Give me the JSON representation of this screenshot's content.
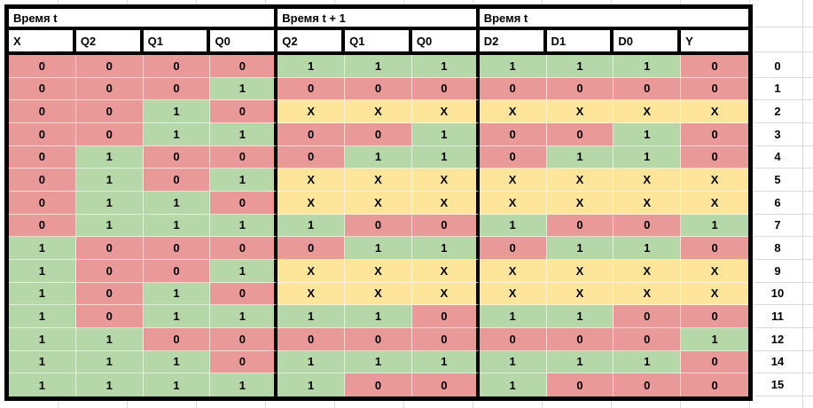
{
  "colors": {
    "fill_zero": "#ea9999",
    "fill_one": "#b6d7a8",
    "fill_x": "#ffe599",
    "grid_line": "#dadada",
    "table_border": "#000000",
    "cell_divider": "rgba(255,255,255,0.6)",
    "background": "#ffffff"
  },
  "sections": [
    {
      "title": "Время t",
      "columns": [
        "X",
        "Q2",
        "Q1",
        "Q0"
      ]
    },
    {
      "title": "Время t + 1",
      "columns": [
        "Q2",
        "Q1",
        "Q0"
      ]
    },
    {
      "title": "Время t",
      "columns": [
        "D2",
        "D1",
        "D0",
        "Y"
      ]
    }
  ],
  "rows": [
    {
      "cells": [
        "0",
        "0",
        "0",
        "0",
        "1",
        "1",
        "1",
        "1",
        "1",
        "1",
        "0"
      ],
      "label": "0"
    },
    {
      "cells": [
        "0",
        "0",
        "0",
        "1",
        "0",
        "0",
        "0",
        "0",
        "0",
        "0",
        "0"
      ],
      "label": "1"
    },
    {
      "cells": [
        "0",
        "0",
        "1",
        "0",
        "X",
        "X",
        "X",
        "X",
        "X",
        "X",
        "X"
      ],
      "label": "2"
    },
    {
      "cells": [
        "0",
        "0",
        "1",
        "1",
        "0",
        "0",
        "1",
        "0",
        "0",
        "1",
        "0"
      ],
      "label": "3"
    },
    {
      "cells": [
        "0",
        "1",
        "0",
        "0",
        "0",
        "1",
        "1",
        "0",
        "1",
        "1",
        "0"
      ],
      "label": "4"
    },
    {
      "cells": [
        "0",
        "1",
        "0",
        "1",
        "X",
        "X",
        "X",
        "X",
        "X",
        "X",
        "X"
      ],
      "label": "5"
    },
    {
      "cells": [
        "0",
        "1",
        "1",
        "0",
        "X",
        "X",
        "X",
        "X",
        "X",
        "X",
        "X"
      ],
      "label": "6"
    },
    {
      "cells": [
        "0",
        "1",
        "1",
        "1",
        "1",
        "0",
        "0",
        "1",
        "0",
        "0",
        "1"
      ],
      "label": "7"
    },
    {
      "cells": [
        "1",
        "0",
        "0",
        "0",
        "0",
        "1",
        "1",
        "0",
        "1",
        "1",
        "0"
      ],
      "label": "8"
    },
    {
      "cells": [
        "1",
        "0",
        "0",
        "1",
        "X",
        "X",
        "X",
        "X",
        "X",
        "X",
        "X"
      ],
      "label": "9"
    },
    {
      "cells": [
        "1",
        "0",
        "1",
        "0",
        "X",
        "X",
        "X",
        "X",
        "X",
        "X",
        "X"
      ],
      "label": "10"
    },
    {
      "cells": [
        "1",
        "0",
        "1",
        "1",
        "1",
        "1",
        "0",
        "1",
        "1",
        "0",
        "0"
      ],
      "label": "11"
    },
    {
      "cells": [
        "1",
        "1",
        "0",
        "0",
        "0",
        "0",
        "0",
        "0",
        "0",
        "0",
        "1"
      ],
      "label": "12"
    },
    {
      "cells": [
        "1",
        "1",
        "1",
        "0",
        "1",
        "1",
        "1",
        "1",
        "1",
        "1",
        "0"
      ],
      "label": "14"
    },
    {
      "cells": [
        "1",
        "1",
        "1",
        "1",
        "1",
        "0",
        "0",
        "1",
        "0",
        "0",
        "0"
      ],
      "label": "15"
    }
  ]
}
